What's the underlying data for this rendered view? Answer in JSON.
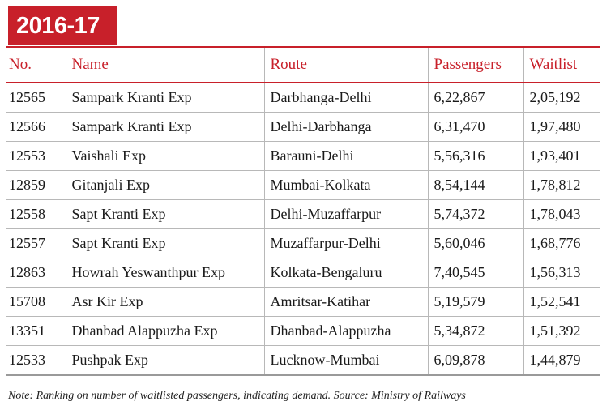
{
  "title": "2016-17",
  "table": {
    "headers": {
      "no": "No.",
      "name": "Name",
      "route": "Route",
      "passengers": "Passengers",
      "waitlist": "Waitlist"
    },
    "rows": [
      {
        "no": "12565",
        "name": "Sampark Kranti Exp",
        "route": "Darbhanga-Delhi",
        "passengers": "6,22,867",
        "waitlist": "2,05,192"
      },
      {
        "no": "12566",
        "name": "Sampark Kranti Exp",
        "route": "Delhi-Darbhanga",
        "passengers": "6,31,470",
        "waitlist": "1,97,480"
      },
      {
        "no": "12553",
        "name": "Vaishali Exp",
        "route": "Barauni-Delhi",
        "passengers": "5,56,316",
        "waitlist": "1,93,401"
      },
      {
        "no": "12859",
        "name": "Gitanjali Exp",
        "route": "Mumbai-Kolkata",
        "passengers": "8,54,144",
        "waitlist": "1,78,812"
      },
      {
        "no": "12558",
        "name": "Sapt Kranti Exp",
        "route": "Delhi-Muzaffarpur",
        "passengers": "5,74,372",
        "waitlist": "1,78,043"
      },
      {
        "no": "12557",
        "name": "Sapt Kranti Exp",
        "route": "Muzaffarpur-Delhi",
        "passengers": "5,60,046",
        "waitlist": "1,68,776"
      },
      {
        "no": "12863",
        "name": "Howrah Yeswanthpur Exp",
        "route": "Kolkata-Bengaluru",
        "passengers": "7,40,545",
        "waitlist": "1,56,313"
      },
      {
        "no": "15708",
        "name": "Asr Kir Exp",
        "route": "Amritsar-Katihar",
        "passengers": "5,19,579",
        "waitlist": "1,52,541"
      },
      {
        "no": "13351",
        "name": "Dhanbad Alappuzha Exp",
        "route": "Dhanbad-Alappuzha",
        "passengers": "5,34,872",
        "waitlist": "1,51,392"
      },
      {
        "no": "12533",
        "name": "Pushpak Exp",
        "route": "Lucknow-Mumbai",
        "passengers": "6,09,878",
        "waitlist": "1,44,879"
      }
    ]
  },
  "note": "Note: Ranking on number of waitlisted passengers, indicating demand. Source: Ministry of Railways",
  "colors": {
    "accent": "#c8202a",
    "text": "#1a1a1a",
    "rule": "#b8b8b8"
  }
}
